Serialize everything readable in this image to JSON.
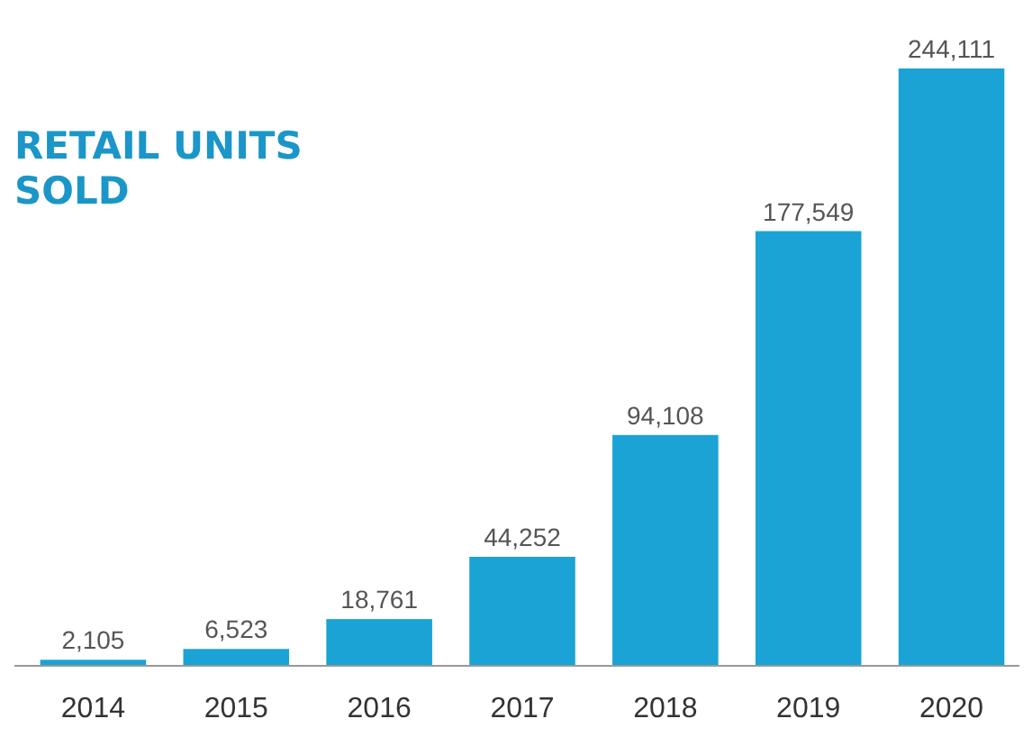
{
  "chart_data": {
    "type": "bar",
    "title": "RETAIL UNITS SOLD",
    "categories": [
      "2014",
      "2015",
      "2016",
      "2017",
      "2018",
      "2019",
      "2020"
    ],
    "values": [
      2105,
      6523,
      18761,
      44252,
      94108,
      177549,
      244111
    ],
    "value_labels": [
      "2,105",
      "6,523",
      "18,761",
      "44,252",
      "94,108",
      "177,549",
      "244,111"
    ],
    "color": "#1aa3d4"
  }
}
